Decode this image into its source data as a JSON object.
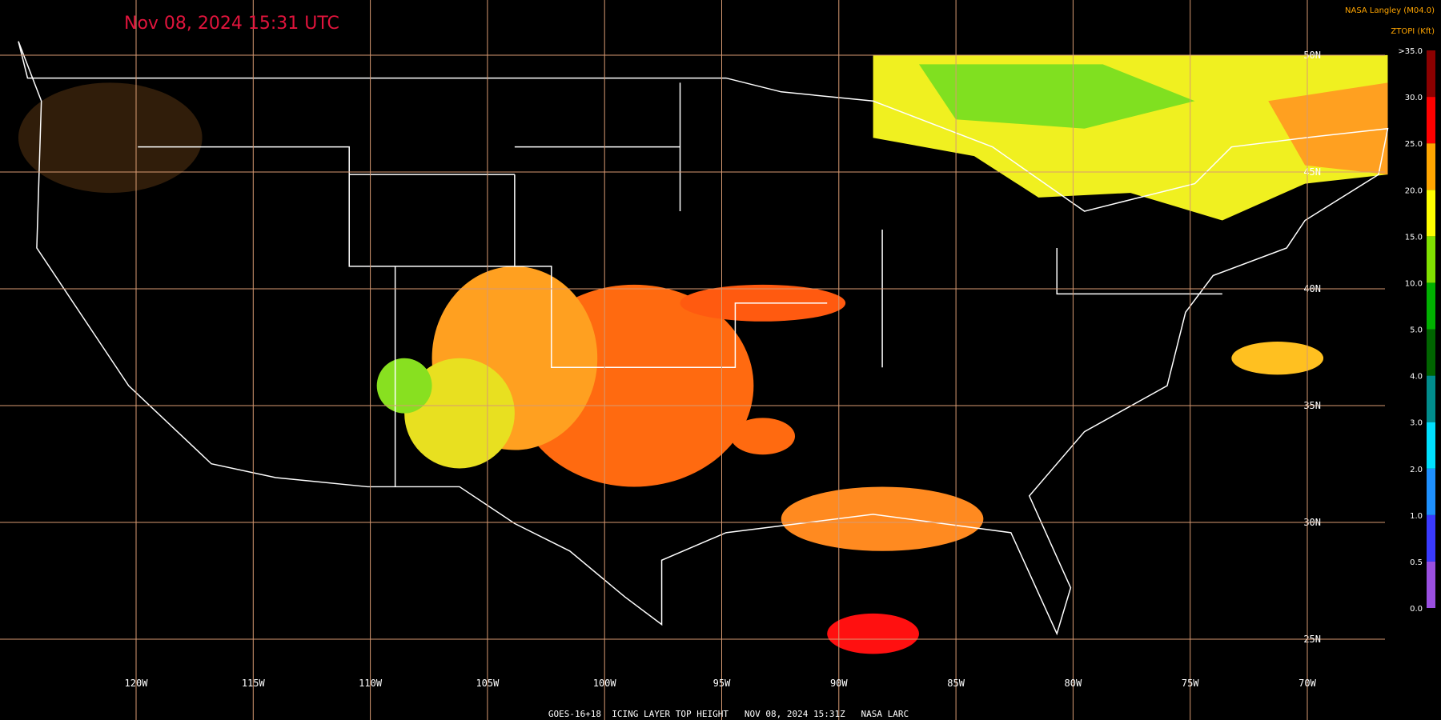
{
  "timestamp": "Nov 08, 2024 15:31 UTC",
  "source": "NASA Langley (M04.0)",
  "product_code": "ZTOPI (Kft)",
  "footer": "GOES-16+18  ICING LAYER TOP HEIGHT   NOV 08, 2024 15:31Z   NASA LARC",
  "latitude_labels": [
    "50N",
    "45N",
    "40N",
    "35N",
    "30N",
    "25N"
  ],
  "longitude_labels": [
    "120W",
    "115W",
    "110W",
    "105W",
    "100W",
    "95W",
    "90W",
    "85W",
    "80W",
    "75W",
    "70W"
  ],
  "colorbar": {
    "labels": [
      "0.0",
      "0.5",
      "1.0",
      "2.0",
      "3.0",
      "4.0",
      "5.0",
      "10.0",
      "15.0",
      "20.0",
      "25.0",
      "30.0",
      ">35.0"
    ],
    "colors": [
      "#9a4fe0",
      "#3a3aff",
      "#1e90ff",
      "#00e0ff",
      "#008c8c",
      "#006400",
      "#00b000",
      "#80e000",
      "#ffff00",
      "#ffa500",
      "#ff0000",
      "#8b0000"
    ]
  }
}
